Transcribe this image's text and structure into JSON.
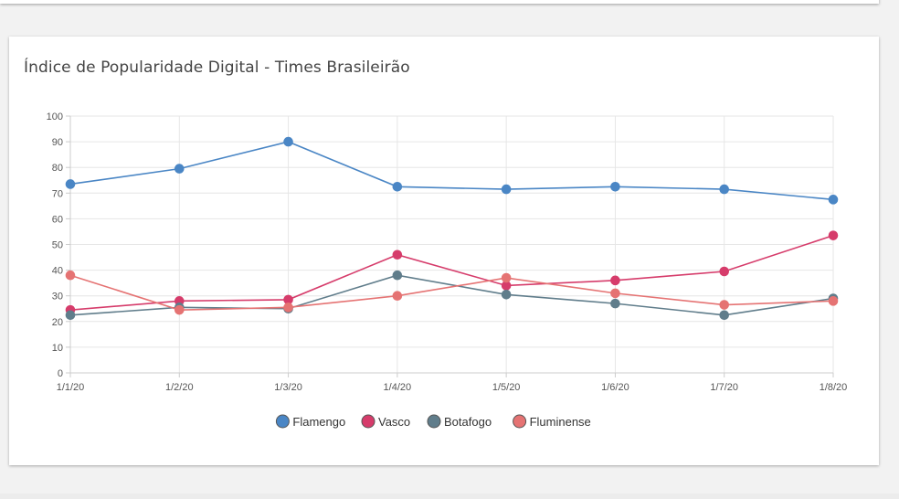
{
  "chart_data": {
    "type": "line",
    "title": "Índice de Popularidade Digital - Times Brasileirão",
    "xlabel": "",
    "ylabel": "",
    "ylim": [
      0,
      100
    ],
    "yticks": [
      0,
      10,
      20,
      30,
      40,
      50,
      60,
      70,
      80,
      90,
      100
    ],
    "categories": [
      "1/1/20",
      "1/2/20",
      "1/3/20",
      "1/4/20",
      "1/5/20",
      "1/6/20",
      "1/7/20",
      "1/8/20"
    ],
    "grid": true,
    "legend_position": "bottom",
    "series": [
      {
        "name": "Flamengo",
        "color": "#4a86c5",
        "values": [
          73.5,
          79.5,
          90,
          72.5,
          71.5,
          72.5,
          71.5,
          67.5
        ]
      },
      {
        "name": "Vasco",
        "color": "#d63c6b",
        "values": [
          24.5,
          28,
          28.5,
          46,
          34,
          36,
          39.5,
          53.5
        ]
      },
      {
        "name": "Botafogo",
        "color": "#607d8b",
        "values": [
          22.5,
          25.5,
          25,
          38,
          30.5,
          27,
          22.5,
          29
        ]
      },
      {
        "name": "Fluminense",
        "color": "#e57373",
        "values": [
          38,
          24.5,
          25.5,
          30,
          37,
          31,
          26.5,
          28
        ]
      }
    ]
  }
}
